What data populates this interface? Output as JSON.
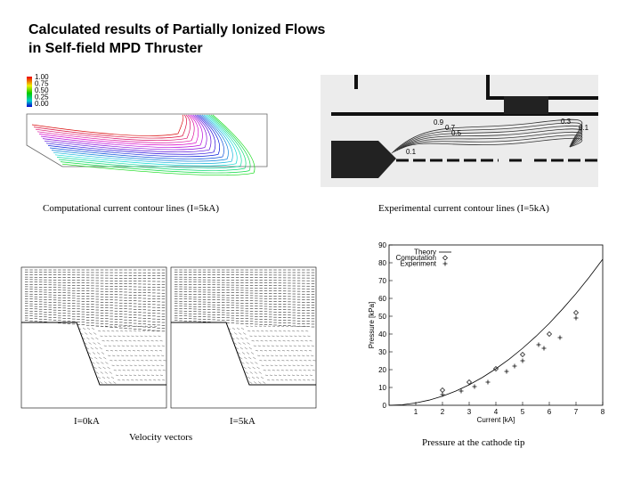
{
  "header": {
    "title": [
      "Calculated results of Partially Ionized Flows",
      "in Self-field MPD Thruster"
    ]
  },
  "figures": {
    "computational": {
      "caption": "Computational current contour lines (I=5kA)",
      "colorbar": [
        "1.00",
        "0.75",
        "0.50",
        "0.25",
        "0.00"
      ]
    },
    "experimental": {
      "caption": "Experimental current contour lines (I=5kA)",
      "contour_labels": [
        "0.9",
        "0.7",
        "0.5",
        "0.3",
        "0.1",
        "0.1"
      ]
    },
    "velocity": {
      "panels": [
        "I=0kA",
        "I=5kA"
      ],
      "caption": "Velocity vectors"
    },
    "pressure_caption": "Pressure at the cathode tip"
  },
  "chart_data": {
    "type": "scatter",
    "x_label": "Current [kA]",
    "y_label": "Pressure [kPa]",
    "xlim": [
      0,
      8
    ],
    "xticks": [
      1,
      2,
      3,
      4,
      5,
      6,
      7,
      8
    ],
    "ylim": [
      0,
      90
    ],
    "yticks": [
      0,
      10,
      20,
      30,
      40,
      50,
      60,
      70,
      80,
      90
    ],
    "legend": "top-left",
    "series": [
      {
        "name": "Theory",
        "color": "#000000",
        "marker": "line",
        "x": [
          0,
          0.5,
          1,
          1.5,
          2,
          2.5,
          3,
          3.5,
          4,
          4.5,
          5,
          5.5,
          6,
          6.5,
          7,
          7.5,
          8
        ],
        "values": [
          0,
          0.3,
          1.3,
          2.9,
          5.1,
          8,
          11.5,
          15.7,
          20.5,
          25.9,
          32,
          38.7,
          46,
          54.1,
          62.7,
          72,
          82
        ]
      },
      {
        "name": "Computation",
        "color": "#000000",
        "marker": "diamond",
        "x": [
          2,
          3,
          4,
          5,
          6,
          7
        ],
        "values": [
          8.5,
          13,
          20.5,
          28.5,
          40,
          52
        ]
      },
      {
        "name": "Experiment",
        "color": "#000000",
        "marker": "plus",
        "x": [
          2,
          2.7,
          3.2,
          3.7,
          4.4,
          4.7,
          5,
          5.6,
          5.8,
          6.4,
          7
        ],
        "values": [
          6,
          8,
          10.5,
          13,
          19,
          22,
          25,
          34,
          32,
          38,
          49
        ]
      }
    ]
  }
}
